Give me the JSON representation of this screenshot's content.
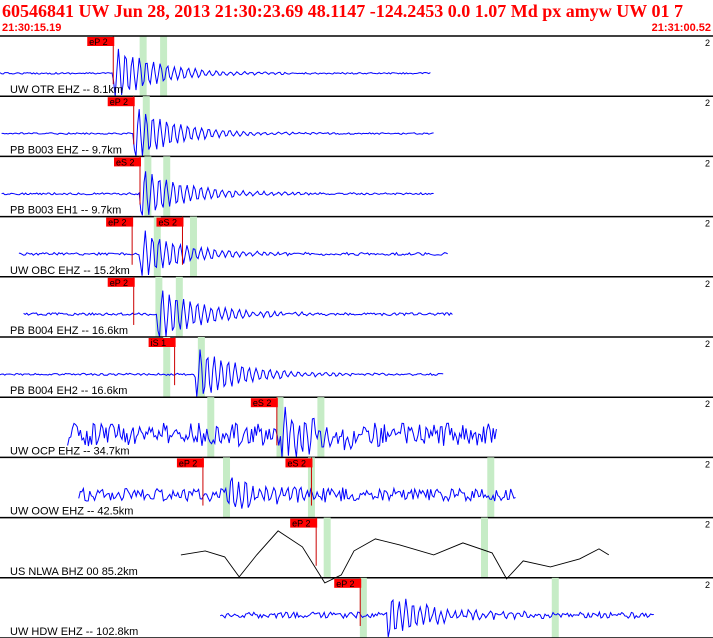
{
  "header": {
    "event_id": "60546841",
    "network": "UW",
    "date": "Jun 28, 2013",
    "time": "21:30:23.69",
    "lat": "48.1147",
    "lon": "-124.2453",
    "depth": "0.0",
    "magnitude": "1.07",
    "mag_type": "Md",
    "event_type": "px",
    "author": "amyw",
    "source": "UW",
    "version": "01",
    "extra": "7"
  },
  "time_window": {
    "start": "21:30:15.19",
    "end": "21:31:00.52"
  },
  "colors": {
    "trace": "#0000ff",
    "pick_bg": "#ff0000",
    "pick_mark": "#cc0000",
    "window": "#c6ecc6",
    "divider": "#000000",
    "header": "#ff0000",
    "ray": "#000000"
  },
  "channels": [
    {
      "label": "UW OTR EHZ -- 8.1km",
      "tick": "2",
      "picks": [
        {
          "label": "eP 2",
          "time": 7.2
        }
      ],
      "windows": [
        9.1,
        10.4
      ],
      "trace_start": 0.0,
      "trace_end": 27.4,
      "onset": 7.2,
      "amp": 1.0,
      "noise": 0.03,
      "color": "blue"
    },
    {
      "label": "PB B003 EHZ -- 9.7km",
      "tick": "2",
      "picks": [
        {
          "label": "eP 2",
          "time": 8.5
        }
      ],
      "windows": [
        9.3
      ],
      "trace_start": 0.1,
      "trace_end": 27.6,
      "onset": 8.5,
      "amp": 1.0,
      "noise": 0.03,
      "color": "blue"
    },
    {
      "label": "PB B003 EH1 -- 9.7km",
      "tick": "2",
      "picks": [
        {
          "label": "eS 2",
          "time": 8.9
        }
      ],
      "windows": [
        9.4,
        10.6
      ],
      "trace_start": 0.1,
      "trace_end": 27.6,
      "onset": 8.9,
      "amp": 0.95,
      "noise": 0.04,
      "color": "blue"
    },
    {
      "label": "UW OBC EHZ -- 15.2km",
      "tick": "2",
      "picks": [
        {
          "label": "eP 2",
          "time": 8.4
        },
        {
          "label": "eS 2",
          "time": 11.6
        }
      ],
      "windows": [
        10.0,
        12.3
      ],
      "trace_start": 1.2,
      "trace_end": 28.5,
      "onset": 8.9,
      "amp": 0.9,
      "noise": 0.05,
      "color": "blue"
    },
    {
      "label": "PB B004 EHZ -- 16.6km",
      "tick": "2",
      "picks": [
        {
          "label": "eP 2",
          "time": 8.5
        }
      ],
      "windows": [
        10.1,
        11.4
      ],
      "trace_start": 1.5,
      "trace_end": 28.8,
      "onset": 10.0,
      "amp": 1.0,
      "noise": 0.05,
      "color": "blue"
    },
    {
      "label": "PB B004 EH2 -- 16.6km",
      "tick": "2",
      "picks": [
        {
          "label": "iS 1",
          "time": 11.1
        }
      ],
      "windows": [
        10.6,
        12.8
      ],
      "trace_start": 0.0,
      "trace_end": 28.2,
      "onset": 12.4,
      "amp": 1.0,
      "noise": 0.04,
      "color": "blue"
    },
    {
      "label": "UW OCP EHZ -- 34.7km",
      "tick": "2",
      "picks": [
        {
          "label": "eS 2",
          "time": 17.6
        }
      ],
      "windows": [
        13.4,
        17.8,
        20.4
      ],
      "trace_start": 4.3,
      "trace_end": 31.6,
      "onset": 17.8,
      "amp": 0.75,
      "noise": 0.45,
      "color": "blue"
    },
    {
      "label": "UW OOW EHZ -- 42.5km",
      "tick": "2",
      "picks": [
        {
          "label": "eP 2",
          "time": 12.9
        },
        {
          "label": "eS 2",
          "time": 19.8
        }
      ],
      "windows": [
        14.4,
        19.8,
        31.2
      ],
      "trace_start": 5.0,
      "trace_end": 32.8,
      "onset": 14.4,
      "amp": 0.6,
      "noise": 0.25,
      "color": "blue"
    },
    {
      "label": "US NLWA BHZ 00 85.2km",
      "tick": "2",
      "picks": [
        {
          "label": "eP 2",
          "time": 20.1
        }
      ],
      "windows": [
        20.8,
        30.8
      ],
      "trace_start": 11.5,
      "trace_end": 38.7,
      "onset": 20.8,
      "amp": 0.9,
      "noise": 0.0,
      "color": "black"
    },
    {
      "label": "UW HDW EHZ -- 102.8km",
      "tick": "2",
      "picks": [
        {
          "label": "eP 2",
          "time": 22.9
        }
      ],
      "windows": [
        23.1,
        35.3
      ],
      "trace_start": 14.0,
      "trace_end": 41.6,
      "onset": 24.6,
      "amp": 0.8,
      "noise": 0.12,
      "color": "blue"
    }
  ]
}
